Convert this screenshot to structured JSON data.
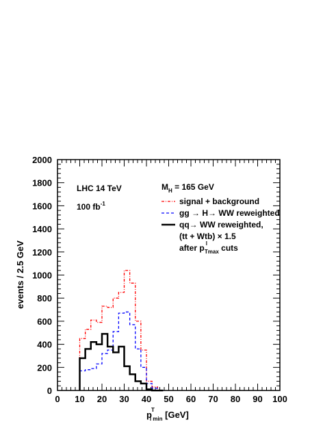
{
  "chart_data": {
    "type": "histogram-step",
    "ylabel": "events  / 2.5 GeV",
    "xlabel": {
      "main": "p",
      "sup": "T",
      "sub": "l min",
      "unit": " [GeV]"
    },
    "xlim": [
      0,
      100
    ],
    "ylim": [
      0,
      2000
    ],
    "x_ticks": [
      "0",
      "10",
      "20",
      "30",
      "40",
      "50",
      "60",
      "70",
      "80",
      "90",
      "100"
    ],
    "y_ticks": [
      "0",
      "200",
      "400",
      "600",
      "800",
      "1000",
      "1200",
      "1400",
      "1600",
      "1800",
      "2000"
    ],
    "bin_edges": [
      10,
      12.5,
      15,
      17.5,
      20,
      22.5,
      25,
      27.5,
      30,
      32.5,
      35,
      37.5,
      40,
      42.5,
      45,
      47.5
    ],
    "grid": false,
    "legend_position": "top-right",
    "annotations": {
      "collider": "LHC 14 TeV",
      "lumi": {
        "main": "100 fb",
        "sup": "-1"
      },
      "mass": {
        "main": "M",
        "sub": "H",
        "rest": " = 165 GeV"
      },
      "cuts": {
        "main": "after p",
        "sup": "l",
        "sub": "Tmax",
        "rest": " cuts"
      },
      "tt_line": "(tt + Wtb) × 1.5"
    },
    "series": [
      {
        "name": "signal + background",
        "color": "#ff0000",
        "dash": "dashdot",
        "values": [
          450,
          530,
          610,
          590,
          730,
          720,
          800,
          850,
          1040,
          930,
          600,
          350,
          80,
          30,
          0
        ]
      },
      {
        "name": "gg → H→ WW reweighted",
        "color": "#0000ff",
        "dash": "dash",
        "values": [
          170,
          180,
          190,
          230,
          320,
          350,
          510,
          670,
          680,
          570,
          360,
          200,
          60,
          20,
          0
        ]
      },
      {
        "name": "qq→ WW reweighted,",
        "color": "#000000",
        "dash": "solid",
        "values": [
          280,
          360,
          420,
          400,
          490,
          380,
          330,
          380,
          210,
          140,
          80,
          60,
          10,
          0,
          0
        ]
      }
    ]
  }
}
